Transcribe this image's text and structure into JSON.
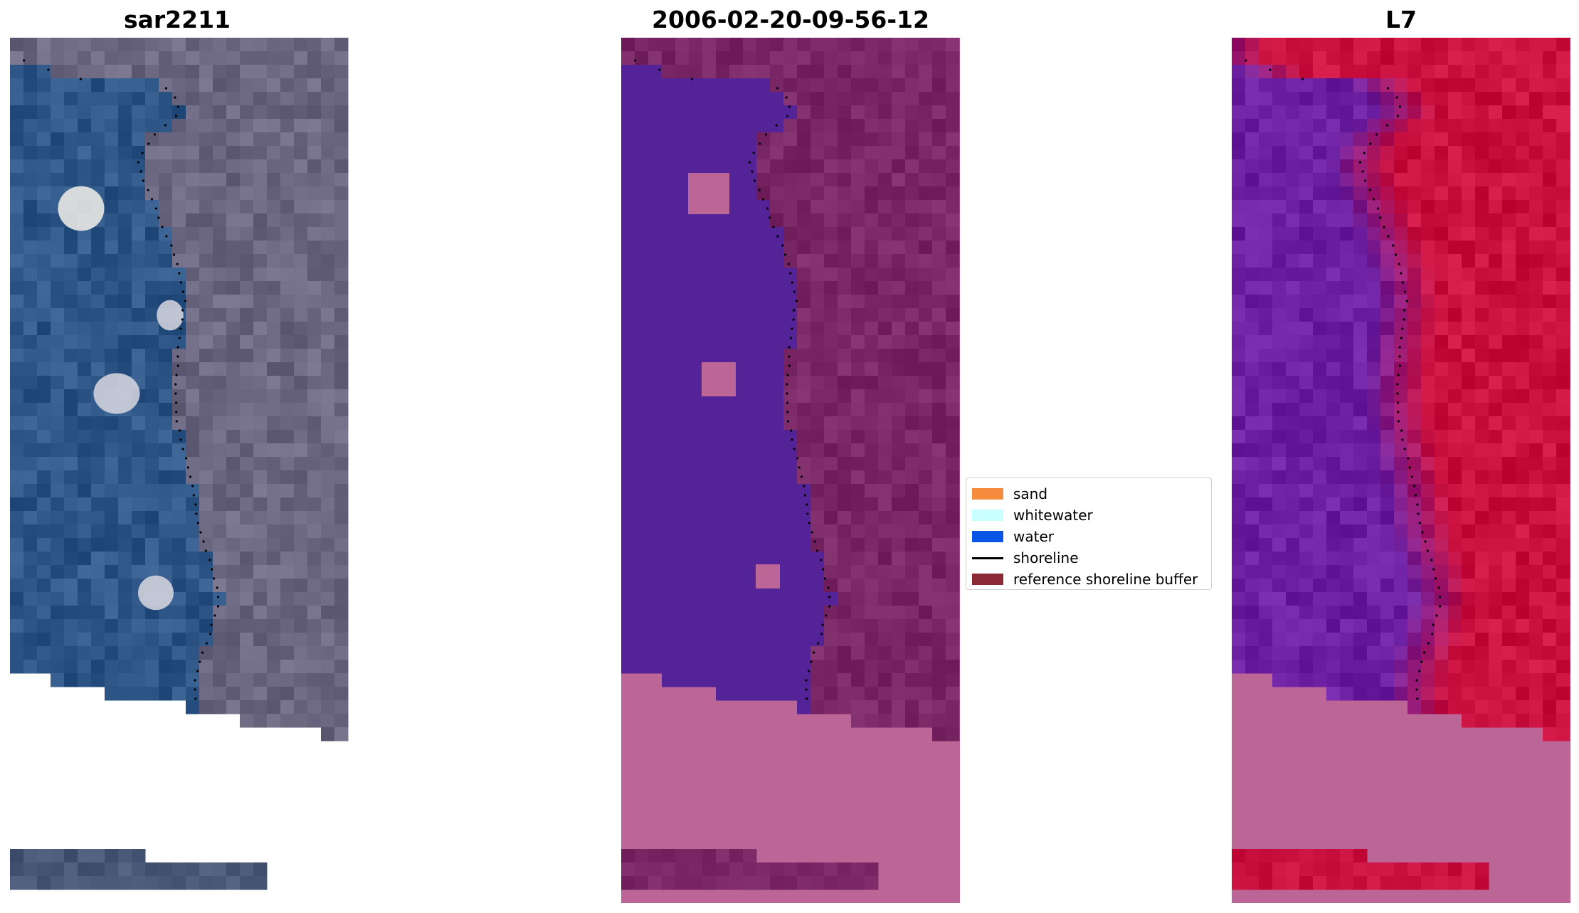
{
  "panels": [
    {
      "title": "sar2211",
      "style": "rgb"
    },
    {
      "title": "2006-02-20-09-56-12",
      "style": "classified"
    },
    {
      "title": "L7",
      "style": "index"
    }
  ],
  "legend": {
    "items": [
      {
        "label": "sand",
        "color": "#f58b3c",
        "kind": "patch"
      },
      {
        "label": "whitewater",
        "color": "#c9ffff",
        "kind": "patch"
      },
      {
        "label": "water",
        "color": "#0a55e6",
        "kind": "patch"
      },
      {
        "label": "shoreline",
        "color": "#000000",
        "kind": "line"
      },
      {
        "label": "reference shoreline buffer",
        "color": "#8b2a34",
        "kind": "patch"
      }
    ]
  },
  "colors": {
    "rgb_water": "#2e5788",
    "rgb_land": "#6b6780",
    "class_water": "#532397",
    "class_land": "#7a2766",
    "class_nodata": "#bb6696",
    "index_water": "#6c1fa0",
    "index_land": "#c9103f",
    "index_nodata": "#bb6696"
  }
}
